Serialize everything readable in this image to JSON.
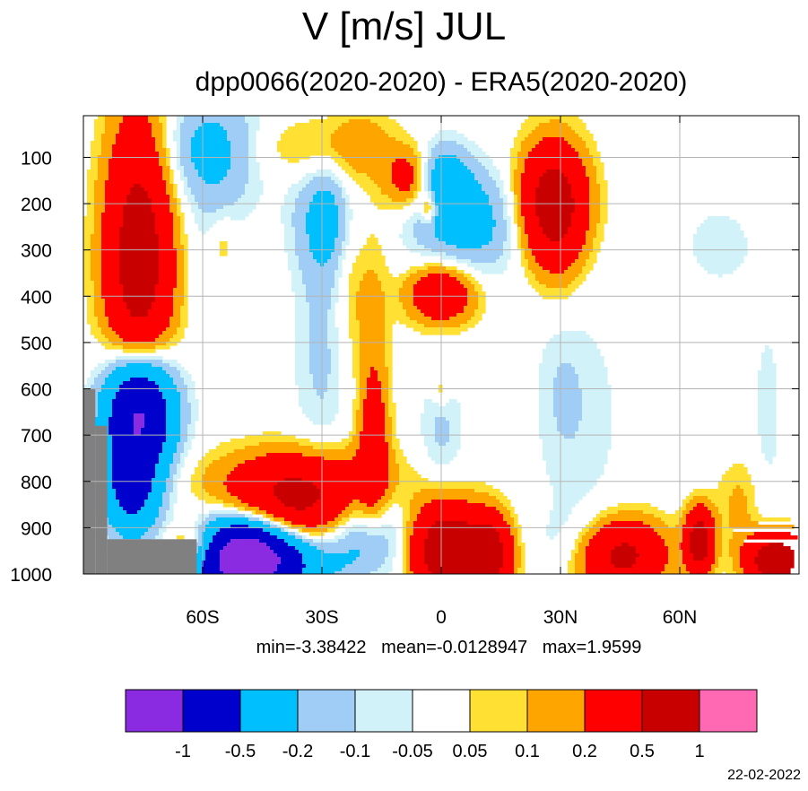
{
  "header": {
    "title": "V [m/s] JUL",
    "subtitle": "dpp0066(2020-2020) - ERA5(2020-2020)"
  },
  "stats": {
    "text": "min=-3.38422   mean=-0.0128947   max=1.9599"
  },
  "footer": {
    "date": "22-02-2022"
  },
  "chart_data": {
    "type": "heatmap",
    "x_axis": {
      "range": [
        -90,
        90
      ],
      "ticks": [
        -60,
        -30,
        0,
        30,
        60
      ],
      "tick_labels": [
        "60S",
        "30S",
        "0",
        "30N",
        "60N"
      ],
      "grid": true
    },
    "y_axis": {
      "range": [
        1000,
        10
      ],
      "ticks": [
        100,
        200,
        300,
        400,
        500,
        600,
        700,
        800,
        900,
        1000
      ],
      "tick_labels": [
        "100",
        "200",
        "300",
        "400",
        "500",
        "600",
        "700",
        "800",
        "900",
        "1000"
      ],
      "grid": true
    },
    "levels": [
      -1,
      -0.5,
      -0.2,
      -0.1,
      -0.05,
      0.05,
      0.1,
      0.2,
      0.5,
      1
    ],
    "level_labels": [
      "-1",
      "-0.5",
      "-0.2",
      "-0.1",
      "-0.05",
      "0.05",
      "0.1",
      "0.2",
      "0.5",
      "1"
    ],
    "colors": [
      "#8a2be2",
      "#0000cd",
      "#00bfff",
      "#a0cdf5",
      "#d2f2fa",
      "#ffffff",
      "#ffe033",
      "#ffa500",
      "#ff0000",
      "#c80000",
      "#ff69b4"
    ],
    "missing_color": "#808080",
    "features": [
      {
        "lat": -76,
        "p": 320,
        "value": 0.7,
        "wx": 6,
        "wp": 220
      },
      {
        "lat": -76,
        "p": 650,
        "value": -1.2,
        "wx": 6,
        "wp": 90
      },
      {
        "lat": -78,
        "p": 820,
        "value": -0.6,
        "wx": 5,
        "wp": 70
      },
      {
        "lat": -50,
        "p": 960,
        "value": -1.5,
        "wx": 9,
        "wp": 55
      },
      {
        "lat": -38,
        "p": 975,
        "value": -0.3,
        "wx": 8,
        "wp": 50
      },
      {
        "lat": -35,
        "p": 860,
        "value": 0.6,
        "wx": 13,
        "wp": 70
      },
      {
        "lat": -35,
        "p": 790,
        "value": 0.15,
        "wx": 18,
        "wp": 50
      },
      {
        "lat": -62,
        "p": 940,
        "value": 0.45,
        "wx": 5,
        "wp": 35
      },
      {
        "lat": -58,
        "p": 80,
        "value": -0.25,
        "wx": 10,
        "wp": 80
      },
      {
        "lat": -58,
        "p": 230,
        "value": -0.07,
        "wx": 6,
        "wp": 150
      },
      {
        "lat": -55,
        "p": 290,
        "value": 0.12,
        "wx": 2.5,
        "wp": 45
      },
      {
        "lat": -30,
        "p": 80,
        "value": 0.15,
        "wx": 16,
        "wp": 50
      },
      {
        "lat": -28,
        "p": 230,
        "value": -0.28,
        "wx": 6,
        "wp": 90
      },
      {
        "lat": -23,
        "p": 290,
        "value": 0.15,
        "wx": 3,
        "wp": 170
      },
      {
        "lat": -30,
        "p": 520,
        "value": -0.12,
        "wx": 5,
        "wp": 180
      },
      {
        "lat": -17,
        "p": 500,
        "value": 0.12,
        "wx": 3,
        "wp": 320
      },
      {
        "lat": -17,
        "p": 720,
        "value": 0.25,
        "wx": 2.5,
        "wp": 110
      },
      {
        "lat": -20,
        "p": 910,
        "value": -0.4,
        "wx": 8,
        "wp": 70
      },
      {
        "lat": -8,
        "p": 150,
        "value": 0.35,
        "wx": 4,
        "wp": 45
      },
      {
        "lat": 0,
        "p": 150,
        "value": -0.3,
        "wx": 5,
        "wp": 60
      },
      {
        "lat": -3,
        "p": 210,
        "value": 0.3,
        "wx": 1.5,
        "wp": 25
      },
      {
        "lat": 7,
        "p": 240,
        "value": -0.28,
        "wx": 10,
        "wp": 80
      },
      {
        "lat": 0,
        "p": 395,
        "value": 0.45,
        "wx": 6,
        "wp": 45
      },
      {
        "lat": 0,
        "p": 600,
        "value": 0.12,
        "wx": 1.5,
        "wp": 25
      },
      {
        "lat": 0,
        "p": 700,
        "value": -0.12,
        "wx": 4,
        "wp": 90
      },
      {
        "lat": 1,
        "p": 950,
        "value": 0.8,
        "wx": 6,
        "wp": 70
      },
      {
        "lat": 12,
        "p": 960,
        "value": 0.7,
        "wx": 4,
        "wp": 60
      },
      {
        "lat": 28,
        "p": 200,
        "value": 0.7,
        "wx": 6,
        "wp": 90
      },
      {
        "lat": 30,
        "p": 360,
        "value": 0.12,
        "wx": 4,
        "wp": 140
      },
      {
        "lat": 30,
        "p": 500,
        "value": -0.1,
        "wx": 4,
        "wp": 150
      },
      {
        "lat": 35,
        "p": 660,
        "value": -0.08,
        "wx": 8,
        "wp": 180
      },
      {
        "lat": 34,
        "p": 940,
        "value": -0.12,
        "wx": 7,
        "wp": 55
      },
      {
        "lat": 45,
        "p": 960,
        "value": 0.6,
        "wx": 8,
        "wp": 55
      },
      {
        "lat": 70,
        "p": 290,
        "value": -0.09,
        "wx": 6,
        "wp": 60
      },
      {
        "lat": 82,
        "p": 660,
        "value": -0.07,
        "wx": 3,
        "wp": 190
      },
      {
        "lat": 75,
        "p": 850,
        "value": 0.12,
        "wx": 4,
        "wp": 70
      },
      {
        "lat": 65,
        "p": 930,
        "value": 0.7,
        "wx": 2.5,
        "wp": 50
      },
      {
        "lat": 84,
        "p": 970,
        "value": 0.8,
        "wx": 5,
        "wp": 40
      }
    ]
  }
}
